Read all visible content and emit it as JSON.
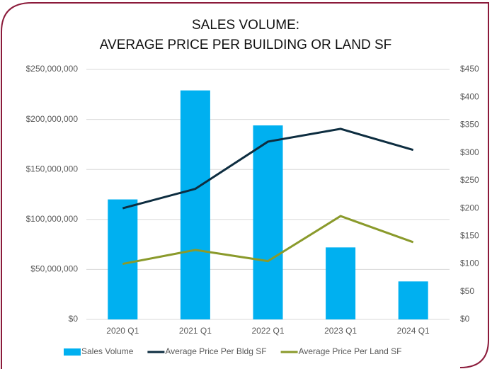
{
  "chart_data": {
    "type": "bar_line",
    "title": [
      "SALES VOLUME:",
      "AVERAGE PRICE PER BUILDING OR LAND SF"
    ],
    "categories": [
      "2020 Q1",
      "2021 Q1",
      "2022 Q1",
      "2023 Q1",
      "2024 Q1"
    ],
    "series": [
      {
        "name": "Sales Volume",
        "type": "bar",
        "color": "#00b0f0",
        "values": [
          120000000,
          229000000,
          194000000,
          72000000,
          38000000
        ]
      },
      {
        "name": "Average Price Per Bldg SF",
        "type": "line",
        "axis": "y2",
        "color": "#0d2d40",
        "values": [
          200,
          235,
          320,
          343,
          305
        ]
      },
      {
        "name": "Average Price Per Land SF",
        "type": "line",
        "axis": "y2",
        "color": "#8a9a2b",
        "values": [
          100,
          125,
          105,
          186,
          139
        ]
      }
    ],
    "ylim": [
      0,
      250000000
    ],
    "yticks": [
      {
        "value": 0,
        "label": "$0"
      },
      {
        "value": 50000000,
        "label": "$50,000,000"
      },
      {
        "value": 100000000,
        "label": "$100,000,000"
      },
      {
        "value": 150000000,
        "label": "$150,000,000"
      },
      {
        "value": 200000000,
        "label": "$200,000,000"
      },
      {
        "value": 250000000,
        "label": "$250,000,000"
      }
    ],
    "y2lim": [
      0,
      450
    ],
    "y2ticks": [
      {
        "value": 0,
        "label": "$0"
      },
      {
        "value": 50,
        "label": "$50"
      },
      {
        "value": 100,
        "label": "$100"
      },
      {
        "value": 150,
        "label": "$150"
      },
      {
        "value": 200,
        "label": "$200"
      },
      {
        "value": 250,
        "label": "$250"
      },
      {
        "value": 300,
        "label": "$300"
      },
      {
        "value": 350,
        "label": "$350"
      },
      {
        "value": 400,
        "label": "$400"
      },
      {
        "value": 450,
        "label": "$450"
      }
    ],
    "grid": true,
    "legend": "bottom"
  }
}
